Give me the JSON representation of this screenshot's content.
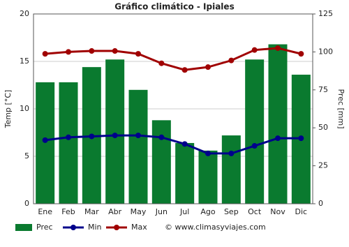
{
  "chart_data": {
    "type": "combo",
    "title": "Gráfico climático - Ipiales",
    "categories": [
      "Ene",
      "Feb",
      "Mar",
      "Abr",
      "May",
      "Jun",
      "Jul",
      "Ago",
      "Sep",
      "Oct",
      "Nov",
      "Dic"
    ],
    "series": [
      {
        "name": "Prec",
        "type": "bar",
        "axis": "y2",
        "color": "#0a7a2f",
        "values": [
          80,
          80,
          90,
          95,
          75,
          55,
          40,
          35,
          45,
          95,
          105,
          85
        ]
      },
      {
        "name": "Min",
        "type": "line",
        "color": "#00008b",
        "values": [
          6.7,
          7,
          7.1,
          7.2,
          7.2,
          7,
          6.3,
          5.3,
          5.3,
          6.1,
          6.9,
          6.9
        ]
      },
      {
        "name": "Max",
        "type": "line",
        "color": "#a00000",
        "values": [
          15.8,
          16,
          16.1,
          16.1,
          15.8,
          14.8,
          14.1,
          14.4,
          15.1,
          16.2,
          16.4,
          15.8
        ]
      }
    ],
    "ylabel": "Temp [°C]",
    "y2label": "Prec [mm]",
    "ylim": [
      0,
      20
    ],
    "yticks": [
      0,
      5,
      10,
      15,
      20
    ],
    "y2lim": [
      0,
      125
    ],
    "y2ticks": [
      0,
      25,
      50,
      75,
      100,
      125
    ],
    "grid": true,
    "legend": "bottom",
    "credit": "© www.climasyviajes.com"
  }
}
